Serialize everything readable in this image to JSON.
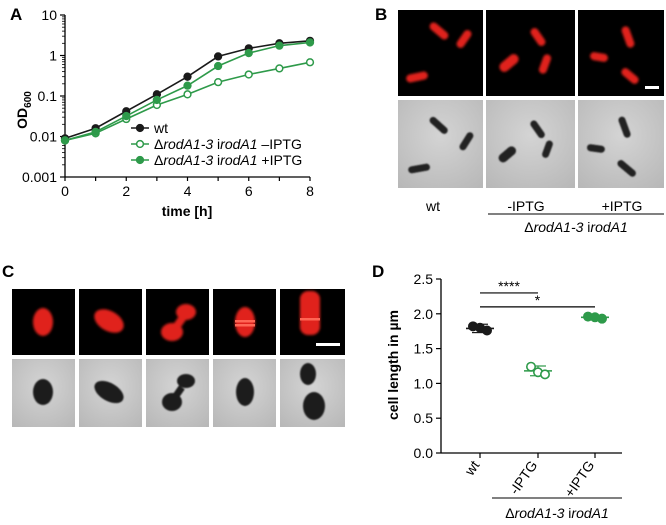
{
  "panels": {
    "A": "A",
    "B": "B",
    "C": "C",
    "D": "D"
  },
  "colors": {
    "wt": "#1a1a1a",
    "green": "#2e9a4a",
    "fluor_red": "#e0241a",
    "phase_bg": "#c4c4c4"
  },
  "chart_data": [
    {
      "type": "line",
      "panel": "A",
      "xlabel": "time [h]",
      "ylabel_main": "OD",
      "ylabel_sub": "600",
      "yscale": "log",
      "xlim": [
        0,
        8
      ],
      "ylim": [
        0.001,
        10
      ],
      "xticks": [
        "0",
        "2",
        "4",
        "6",
        "8"
      ],
      "yticks": [
        "0.001",
        "0.01",
        "0.1",
        "1",
        "10"
      ],
      "x": [
        0,
        1,
        2,
        3,
        4,
        5,
        6,
        7,
        8
      ],
      "legend_position": "bottom-right",
      "series": [
        {
          "name": "wt",
          "name_parts": [
            "wt"
          ],
          "marker": "filled",
          "color": "#1a1a1a",
          "values": [
            0.009,
            0.016,
            0.042,
            0.11,
            0.3,
            0.95,
            1.5,
            2.0,
            2.3
          ]
        },
        {
          "name": "ΔrodA1-3 irodA1 –IPTG",
          "name_parts": [
            "Δ",
            "rodA1-3",
            " i",
            "rodA1",
            " –IPTG"
          ],
          "marker": "open",
          "color": "#2e9a4a",
          "values": [
            0.008,
            0.012,
            0.027,
            0.06,
            0.11,
            0.22,
            0.34,
            0.48,
            0.68
          ]
        },
        {
          "name": "ΔrodA1-3 irodA1 +IPTG",
          "name_parts": [
            "Δ",
            "rodA1-3",
            " i",
            "rodA1",
            " +IPTG"
          ],
          "marker": "filled",
          "color": "#2e9a4a",
          "values": [
            0.008,
            0.013,
            0.032,
            0.08,
            0.18,
            0.55,
            1.15,
            1.75,
            2.1
          ]
        }
      ]
    },
    {
      "type": "scatter",
      "panel": "D",
      "ylabel": "cell length in µm",
      "ylim": [
        0,
        2.5
      ],
      "yticks": [
        "0.0",
        "0.5",
        "1.0",
        "1.5",
        "2.0",
        "2.5"
      ],
      "categories": [
        "wt",
        "-IPTG",
        "+IPTG"
      ],
      "group_label": "ΔrodA1-3 irodA1",
      "group_label_parts": [
        "Δ",
        "rodA1-3",
        " i",
        "rodA1"
      ],
      "series": [
        {
          "category": "wt",
          "color": "#1a1a1a",
          "marker": "filled",
          "points": [
            1.82,
            1.8,
            1.76
          ],
          "mean": 1.79,
          "err": 0.06
        },
        {
          "category": "-IPTG",
          "color": "#2e9a4a",
          "marker": "open",
          "points": [
            1.24,
            1.16,
            1.13
          ],
          "mean": 1.18,
          "err": 0.07
        },
        {
          "category": "+IPTG",
          "color": "#2e9a4a",
          "marker": "filled",
          "points": [
            1.96,
            1.95,
            1.93
          ],
          "mean": 1.95,
          "err": 0.03
        }
      ],
      "significance": [
        {
          "from": "wt",
          "to": "-IPTG",
          "label": "****",
          "y": 2.3
        },
        {
          "from": "wt",
          "to": "+IPTG",
          "label": "*",
          "y": 2.1
        }
      ]
    }
  ],
  "panel_b": {
    "labels": [
      "wt",
      "-IPTG",
      "+IPTG"
    ],
    "group_label_parts": [
      "Δ",
      "rodA1-3",
      " i",
      "rodA1"
    ]
  }
}
